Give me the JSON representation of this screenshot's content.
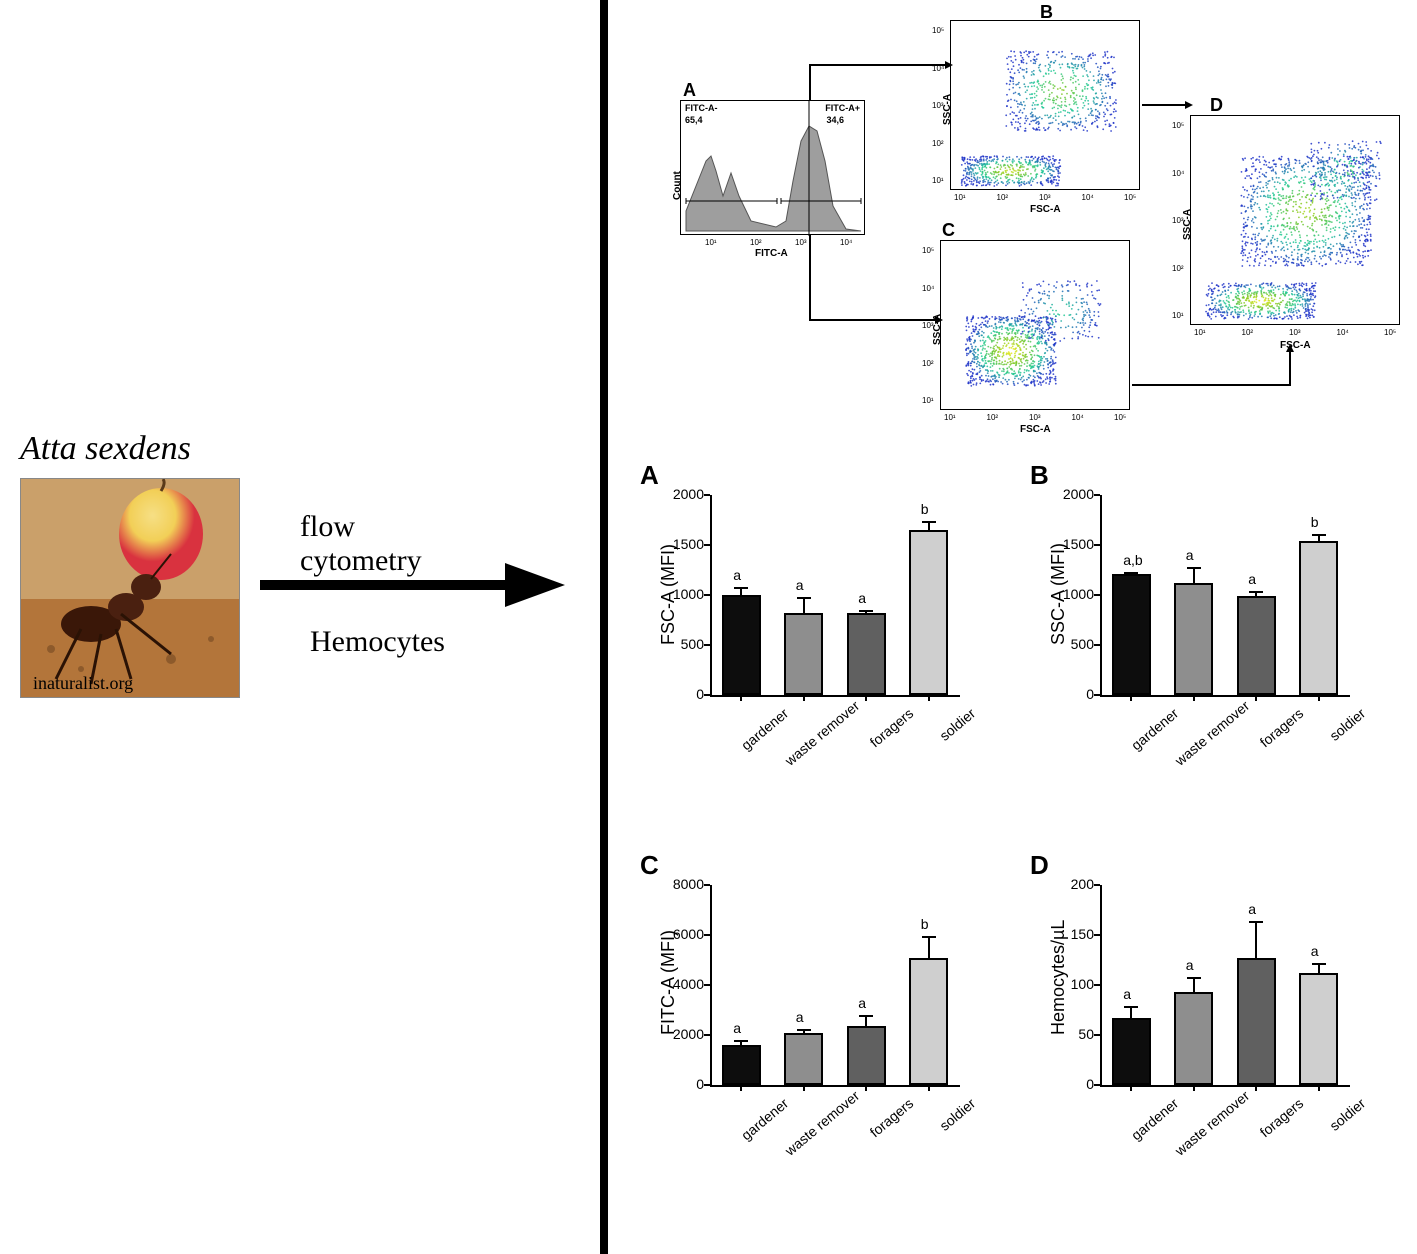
{
  "left": {
    "species": "Atta sexdens",
    "image_credit": "inaturalist.org",
    "arrow_top": "flow cytometry",
    "arrow_bot": "Hemocytes"
  },
  "scatter": {
    "panelA": {
      "label": "A",
      "gate_left": "FITC-A-",
      "gate_left_val": "65,4",
      "gate_right": "FITC-A+",
      "gate_right_val": "34,6",
      "xaxis": "FITC-A",
      "yaxis": "Count",
      "xticks": [
        "10¹",
        "10²",
        "10³",
        "10⁴"
      ]
    },
    "panelB": {
      "label": "B",
      "xaxis": "FSC-A",
      "yaxis": "SSC-A",
      "ticks": [
        "10¹",
        "10²",
        "10³",
        "10⁴",
        "10⁵"
      ]
    },
    "panelC": {
      "label": "C",
      "xaxis": "FSC-A",
      "yaxis": "SSC-A",
      "ticks": [
        "10¹",
        "10²",
        "10³",
        "10⁴",
        "10⁵"
      ]
    },
    "panelD": {
      "label": "D",
      "xaxis": "FSC-A",
      "yaxis": "SSC-A",
      "ticks": [
        "10¹",
        "10²",
        "10³",
        "10⁴",
        "10⁵"
      ]
    }
  },
  "bars": {
    "categories": [
      "gardener",
      "waste remover",
      "foragers",
      "soldier"
    ],
    "bar_colors": [
      "#0d0d0d",
      "#8e8e8e",
      "#606060",
      "#cfcfcf"
    ],
    "bar_width_frac": 0.62,
    "A": {
      "label": "A",
      "ylabel": "FSC-A (MFI)",
      "ylim": [
        0,
        2000
      ],
      "ytick_step": 500,
      "values": [
        1000,
        820,
        820,
        1650
      ],
      "errors": [
        80,
        160,
        30,
        90
      ],
      "sig": [
        "a",
        "a",
        "a",
        "b"
      ]
    },
    "B": {
      "label": "B",
      "ylabel": "SSC-A (MFI)",
      "ylim": [
        0,
        2000
      ],
      "ytick_step": 500,
      "values": [
        1210,
        1120,
        990,
        1540
      ],
      "errors": [
        20,
        165,
        50,
        70
      ],
      "sig": [
        "a,b",
        "a",
        "a",
        "b"
      ]
    },
    "C": {
      "label": "C",
      "ylabel": "FITC-A (MFI)",
      "ylim": [
        0,
        8000
      ],
      "ytick_step": 2000,
      "values": [
        1600,
        2100,
        2350,
        5100
      ],
      "errors": [
        200,
        130,
        450,
        850
      ],
      "sig": [
        "a",
        "a",
        "a",
        "b"
      ]
    },
    "D": {
      "label": "D",
      "ylabel": "Hemocytes/µL",
      "ylim": [
        0,
        200
      ],
      "ytick_step": 50,
      "values": [
        67,
        93,
        127,
        112
      ],
      "errors": [
        12,
        15,
        37,
        10
      ],
      "sig": [
        "a",
        "a",
        "a",
        "a"
      ]
    }
  },
  "colors": {
    "ground": "#b3753a",
    "ant_body": "#3a1708",
    "fruit_top": "#d9323f",
    "fruit_bot": "#f2cf57"
  }
}
